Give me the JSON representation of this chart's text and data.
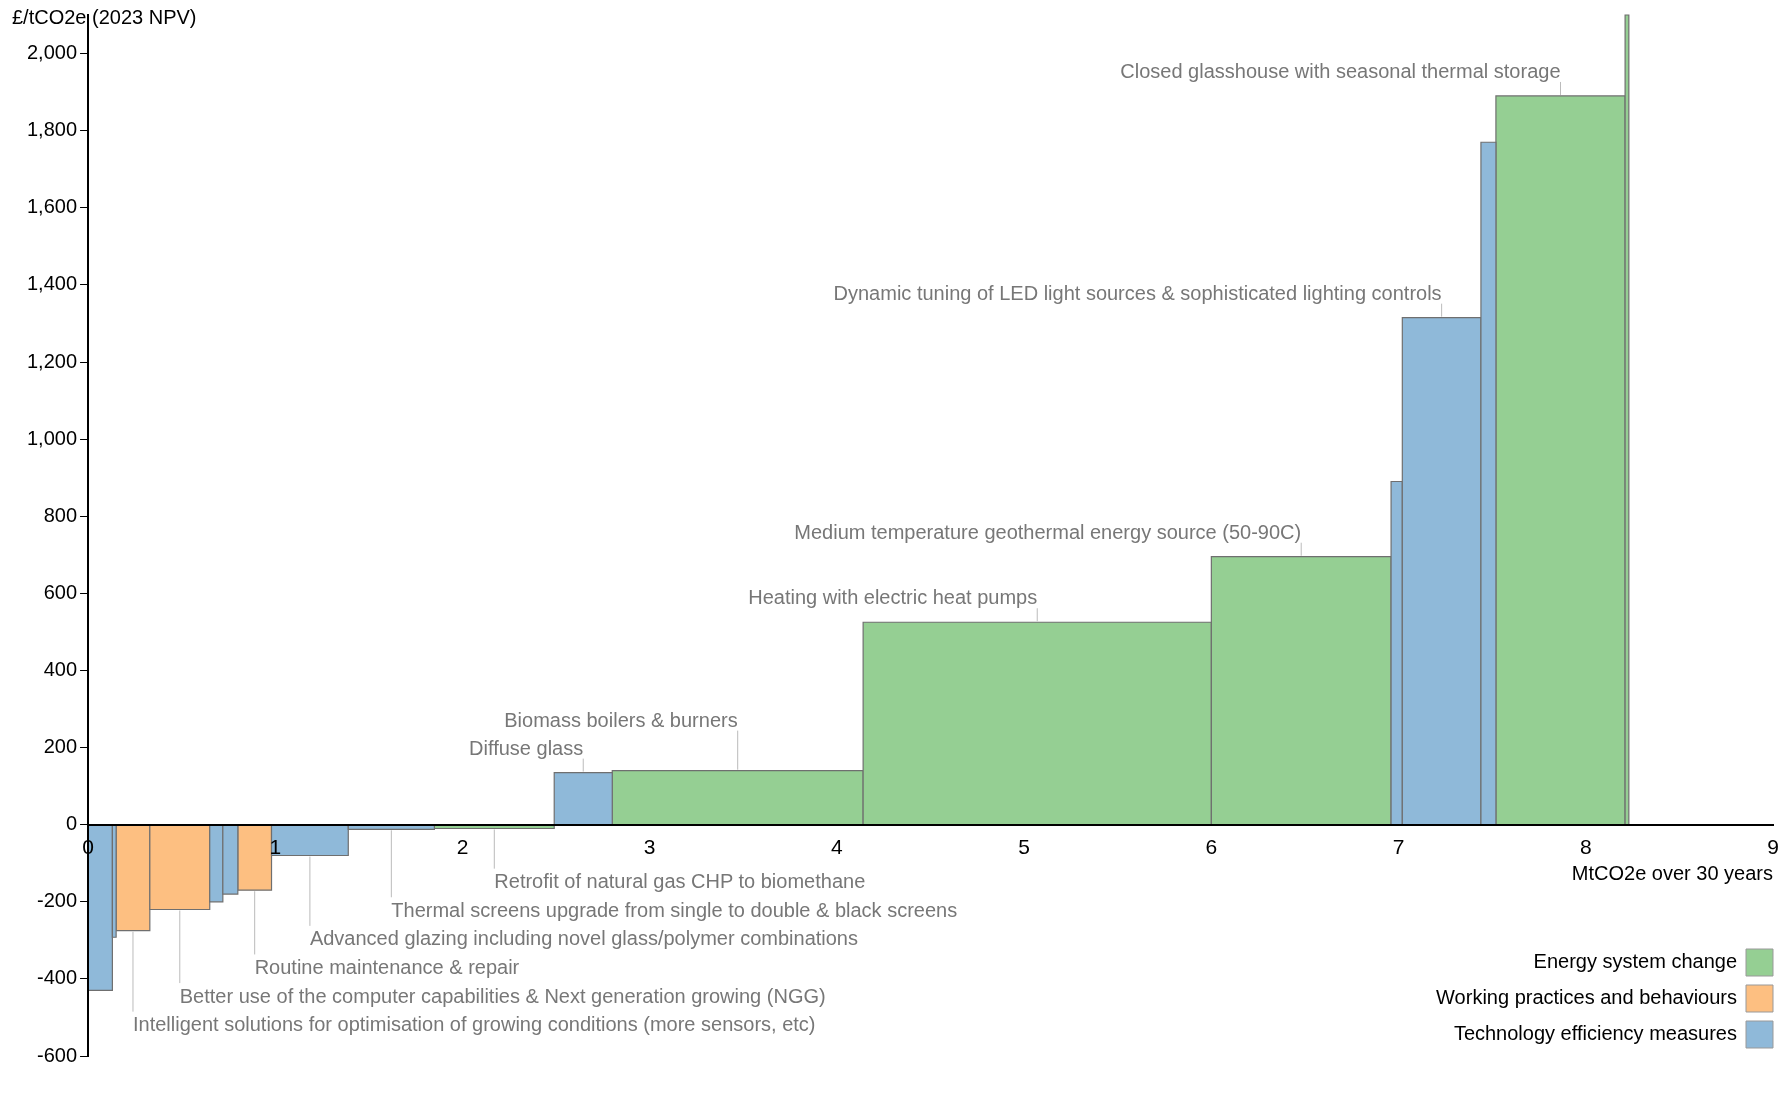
{
  "chart_data": {
    "type": "histogram",
    "ylabel": "£/tCO2e (2023 NPV)",
    "xlabel": "MtCO2e over 30 years",
    "bins": [
      0,
      0.13,
      0.15,
      0.33,
      0.65,
      0.72,
      0.8,
      0.98,
      1.39,
      1.85,
      2.49,
      2.8,
      4.14,
      6.0,
      6.96,
      7.02,
      7.44,
      7.52,
      8.21,
      8.23
    ],
    "series": [
      {
        "name": "Energy system change",
        "color": "#95cf93",
        "values": [
          null,
          null,
          null,
          null,
          null,
          null,
          null,
          null,
          null,
          -10,
          null,
          140,
          525,
          695,
          null,
          null,
          null,
          1890,
          2100
        ]
      },
      {
        "name": "Working practices and behaviours",
        "color": "#fdbf81",
        "values": [
          null,
          null,
          -275,
          -220,
          null,
          null,
          -170,
          null,
          null,
          null,
          null,
          null,
          null,
          null,
          null,
          null,
          null,
          null,
          null
        ]
      },
      {
        "name": "Technology efficiency measures",
        "color": "#8fb9d9",
        "values": [
          -430,
          -292,
          null,
          null,
          -200,
          -180,
          null,
          -80,
          -12,
          null,
          135,
          null,
          null,
          null,
          890,
          1315,
          1770,
          null,
          null
        ]
      }
    ],
    "xlim": [
      0,
      9
    ],
    "xticks": [
      0,
      1,
      2,
      3,
      4,
      5,
      6,
      7,
      8,
      9
    ],
    "ylim": [
      -600,
      2100
    ],
    "yticks": [
      {
        "value": -600,
        "label": "-600"
      },
      {
        "value": -400,
        "label": "-400"
      },
      {
        "value": -200,
        "label": "-200"
      },
      {
        "value": 0,
        "label": "0"
      },
      {
        "value": 200,
        "label": "200"
      },
      {
        "value": 400,
        "label": "400"
      },
      {
        "value": 600,
        "label": "600"
      },
      {
        "value": 800,
        "label": "800"
      },
      {
        "value": 1000,
        "label": "1,000"
      },
      {
        "value": 1200,
        "label": "1,200"
      },
      {
        "value": 1400,
        "label": "1,400"
      },
      {
        "value": 1600,
        "label": "1,600"
      },
      {
        "value": 1800,
        "label": "1,800"
      },
      {
        "value": 2000,
        "label": "2,000"
      }
    ],
    "grid": false,
    "legend": "bottom right",
    "annotations": [
      {
        "text": "Closed glasshouse with seasonal thermal storage",
        "x": 7.865,
        "y": 1890
      },
      {
        "text": "Dynamic tuning of LED light sources & sophisticated lighting controls",
        "x": 7.23,
        "y": 1315
      },
      {
        "text": "Medium temperature geothermal energy source (50-90C)",
        "x": 6.48,
        "y": 695
      },
      {
        "text": "Heating with electric heat pumps",
        "x": 5.07,
        "y": 525
      },
      {
        "text": "Diffuse glass",
        "x": 2.645,
        "y": 135
      },
      {
        "text": "Biomass boilers & burners",
        "x": 3.47,
        "y": 140
      },
      {
        "text": "Retrofit of natural gas CHP to biomethane",
        "x": 2.17,
        "y": -10
      },
      {
        "text": "Thermal screens upgrade from single to double & black screens",
        "x": 1.62,
        "y": -12
      },
      {
        "text": "Advanced glazing including novel glass/polymer combinations",
        "x": 1.185,
        "y": -80
      },
      {
        "text": "Routine maintenance & repair",
        "x": 0.89,
        "y": -170
      },
      {
        "text": "Better use of the computer capabilities & Next generation growing (NGG)",
        "x": 0.49,
        "y": -220
      },
      {
        "text": "Intelligent solutions for optimisation of growing conditions (more sensors, etc)",
        "x": 0.24,
        "y": -275
      }
    ]
  }
}
